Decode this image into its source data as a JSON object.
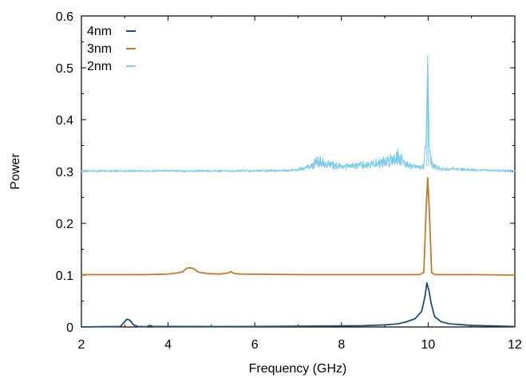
{
  "chart_data": {
    "type": "line",
    "title": "",
    "xlabel": "Frequency (GHz)",
    "ylabel": "Power",
    "xlim": [
      2,
      12
    ],
    "ylim": [
      0,
      0.6
    ],
    "xticks": [
      2,
      4,
      6,
      8,
      10,
      12
    ],
    "yticks": [
      0,
      0.1,
      0.2,
      0.3,
      0.4,
      0.5,
      0.6
    ],
    "grid": false,
    "legend_position": "top-left",
    "series": [
      {
        "name": "4nm",
        "color": "#1f4e79",
        "points": [
          [
            2,
            0
          ],
          [
            2.9,
            0.001
          ],
          [
            3.05,
            0.015
          ],
          [
            3.12,
            0.013
          ],
          [
            3.2,
            0.004
          ],
          [
            3.3,
            0.001
          ],
          [
            3.5,
            0.0005
          ],
          [
            3.58,
            0.003
          ],
          [
            3.65,
            0.001
          ],
          [
            5,
            0.0008
          ],
          [
            6,
            0.001
          ],
          [
            7,
            0.0015
          ],
          [
            8,
            0.002
          ],
          [
            8.5,
            0.0025
          ],
          [
            9,
            0.004
          ],
          [
            9.3,
            0.006
          ],
          [
            9.5,
            0.01
          ],
          [
            9.7,
            0.016
          ],
          [
            9.85,
            0.03
          ],
          [
            9.93,
            0.06
          ],
          [
            9.97,
            0.085
          ],
          [
            10.02,
            0.07
          ],
          [
            10.07,
            0.045
          ],
          [
            10.15,
            0.02
          ],
          [
            10.3,
            0.01
          ],
          [
            10.5,
            0.006
          ],
          [
            11,
            0.003
          ],
          [
            12,
            0.001
          ]
        ]
      },
      {
        "name": "3nm",
        "color": "#c07a2a",
        "points": [
          [
            2,
            0.101
          ],
          [
            3,
            0.101
          ],
          [
            3.5,
            0.101
          ],
          [
            4,
            0.102
          ],
          [
            4.2,
            0.104
          ],
          [
            4.35,
            0.107
          ],
          [
            4.42,
            0.113
          ],
          [
            4.5,
            0.114
          ],
          [
            4.58,
            0.113
          ],
          [
            4.7,
            0.106
          ],
          [
            4.9,
            0.103
          ],
          [
            5.2,
            0.102
          ],
          [
            5.38,
            0.104
          ],
          [
            5.45,
            0.107
          ],
          [
            5.52,
            0.103
          ],
          [
            5.7,
            0.102
          ],
          [
            7,
            0.101
          ],
          [
            8,
            0.101
          ],
          [
            9,
            0.101
          ],
          [
            9.8,
            0.101
          ],
          [
            9.9,
            0.105
          ],
          [
            9.95,
            0.22
          ],
          [
            9.99,
            0.288
          ],
          [
            10.03,
            0.22
          ],
          [
            10.08,
            0.105
          ],
          [
            10.15,
            0.101
          ],
          [
            11,
            0.101
          ],
          [
            12,
            0.1
          ]
        ]
      },
      {
        "name": "2nm",
        "color": "#7ecbea",
        "noisy": true,
        "points": [
          [
            2,
            0.301
          ],
          [
            4,
            0.301
          ],
          [
            6,
            0.301
          ],
          [
            6.8,
            0.302
          ],
          [
            7.1,
            0.305
          ],
          [
            7.3,
            0.31
          ],
          [
            7.45,
            0.32
          ],
          [
            7.6,
            0.315
          ],
          [
            7.8,
            0.312
          ],
          [
            8,
            0.31
          ],
          [
            8.2,
            0.31
          ],
          [
            8.5,
            0.312
          ],
          [
            8.8,
            0.315
          ],
          [
            9,
            0.318
          ],
          [
            9.2,
            0.325
          ],
          [
            9.3,
            0.33
          ],
          [
            9.4,
            0.32
          ],
          [
            9.6,
            0.31
          ],
          [
            9.8,
            0.308
          ],
          [
            9.9,
            0.31
          ],
          [
            9.95,
            0.35
          ],
          [
            9.99,
            0.525
          ],
          [
            10.03,
            0.34
          ],
          [
            10.1,
            0.312
          ],
          [
            10.3,
            0.304
          ],
          [
            10.6,
            0.305
          ],
          [
            11,
            0.303
          ],
          [
            12,
            0.301
          ]
        ]
      }
    ]
  }
}
